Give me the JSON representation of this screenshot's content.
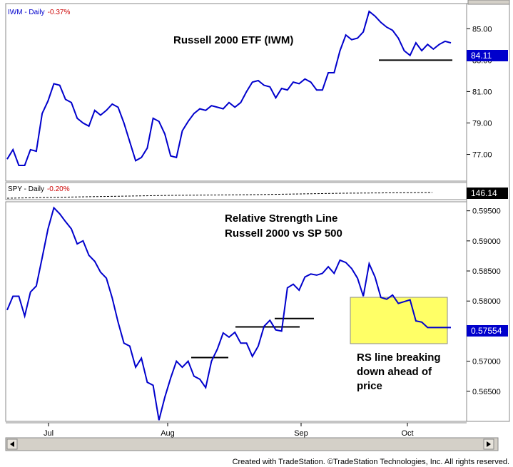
{
  "chart_data": [
    {
      "type": "line",
      "pane": "top",
      "label": "IWM - Daily",
      "change": "-0.37%",
      "annotation": "Russell 2000 ETF (IWM)",
      "last_value": "84.11",
      "line_color": "#0000cc",
      "ylim": [
        75.3,
        86.6
      ],
      "yticks": [
        "85.00",
        "83.00",
        "81.00",
        "79.00",
        "77.00"
      ],
      "support_level": 83.0,
      "x": [
        0,
        1,
        2,
        3,
        4,
        5,
        6,
        7,
        8,
        9,
        10,
        11,
        12,
        13,
        14,
        15,
        16,
        17,
        18,
        19,
        20,
        21,
        22,
        23,
        24,
        25,
        26,
        27,
        28,
        29,
        30,
        31,
        32,
        33,
        34,
        35,
        36,
        37,
        38,
        39,
        40,
        41,
        42,
        43,
        44,
        45,
        46,
        47,
        48,
        49,
        50,
        51,
        52,
        53,
        54,
        55,
        56,
        57,
        58,
        59,
        60,
        61,
        62,
        63,
        64,
        65,
        66,
        67,
        68,
        69,
        70,
        71,
        72,
        73,
        74,
        75,
        76
      ],
      "values": [
        76.7,
        77.3,
        76.3,
        76.3,
        77.3,
        77.2,
        79.6,
        80.4,
        81.5,
        81.4,
        80.5,
        80.3,
        79.3,
        79.0,
        78.8,
        79.8,
        79.5,
        79.8,
        80.2,
        80.0,
        79.0,
        77.8,
        76.6,
        76.8,
        77.4,
        79.3,
        79.1,
        78.3,
        76.9,
        76.8,
        78.5,
        79.1,
        79.6,
        79.9,
        79.8,
        80.1,
        80.0,
        79.9,
        80.3,
        80.0,
        80.3,
        81.0,
        81.6,
        81.7,
        81.4,
        81.3,
        80.6,
        81.2,
        81.1,
        81.6,
        81.5,
        81.8,
        81.6,
        81.1,
        81.1,
        82.2,
        82.2,
        83.6,
        84.6,
        84.3,
        84.4,
        84.8,
        86.1,
        85.8,
        85.4,
        85.1,
        84.9,
        84.4,
        83.6,
        83.3,
        84.1,
        83.6,
        84.0,
        83.7,
        84.0,
        84.2,
        84.1
      ]
    },
    {
      "type": "line",
      "pane": "middle",
      "label": "SPY - Daily",
      "change": "-0.20%",
      "last_value": "146.14",
      "line_color": "#000000",
      "line_style": "dashed"
    },
    {
      "type": "line",
      "pane": "bottom",
      "annotation_lines": [
        "Relative Strength Line",
        "Russell 2000 vs SP 500"
      ],
      "box_text_lines": [
        "RS line breaking",
        "down ahead of",
        "price"
      ],
      "box_color": "#ffff66",
      "last_value": "0.57554",
      "line_color": "#0000cc",
      "ylim": [
        0.56,
        0.5965
      ],
      "yticks": [
        "0.59500",
        "0.59000",
        "0.58500",
        "0.58000",
        "0.57500",
        "0.57000",
        "0.56500"
      ],
      "resistance_levels": [
        0.5706,
        0.5757,
        0.5771
      ],
      "x": [
        0,
        1,
        2,
        3,
        4,
        5,
        6,
        7,
        8,
        9,
        10,
        11,
        12,
        13,
        14,
        15,
        16,
        17,
        18,
        19,
        20,
        21,
        22,
        23,
        24,
        25,
        26,
        27,
        28,
        29,
        30,
        31,
        32,
        33,
        34,
        35,
        36,
        37,
        38,
        39,
        40,
        41,
        42,
        43,
        44,
        45,
        46,
        47,
        48,
        49,
        50,
        51,
        52,
        53,
        54,
        55,
        56,
        57,
        58,
        59,
        60,
        61,
        62,
        63,
        64,
        65,
        66,
        67,
        68,
        69,
        70,
        71,
        72,
        73,
        74,
        75,
        76
      ],
      "values": [
        0.5785,
        0.5808,
        0.5808,
        0.5775,
        0.5815,
        0.5825,
        0.5872,
        0.592,
        0.5955,
        0.5945,
        0.5932,
        0.592,
        0.5895,
        0.59,
        0.5876,
        0.5866,
        0.5848,
        0.5838,
        0.5805,
        0.5765,
        0.573,
        0.5725,
        0.569,
        0.5705,
        0.5665,
        0.566,
        0.5602,
        0.564,
        0.5672,
        0.57,
        0.569,
        0.57,
        0.5675,
        0.567,
        0.5656,
        0.57,
        0.572,
        0.5747,
        0.574,
        0.5748,
        0.573,
        0.573,
        0.5708,
        0.5725,
        0.5758,
        0.5768,
        0.5752,
        0.575,
        0.5822,
        0.5828,
        0.5818,
        0.584,
        0.5845,
        0.5843,
        0.5846,
        0.5857,
        0.5846,
        0.5868,
        0.5864,
        0.5854,
        0.5838,
        0.5808,
        0.5862,
        0.584,
        0.5806,
        0.5803,
        0.581,
        0.5796,
        0.5799,
        0.5802,
        0.5767,
        0.5765,
        0.5756,
        0.5756,
        0.5756,
        0.5756,
        0.5756
      ]
    }
  ],
  "x_axis_labels": [
    "Jul",
    "Aug",
    "Sep",
    "Oct"
  ],
  "footer": "Created with TradeStation. ©TradeStation Technologies, Inc. All rights reserved."
}
